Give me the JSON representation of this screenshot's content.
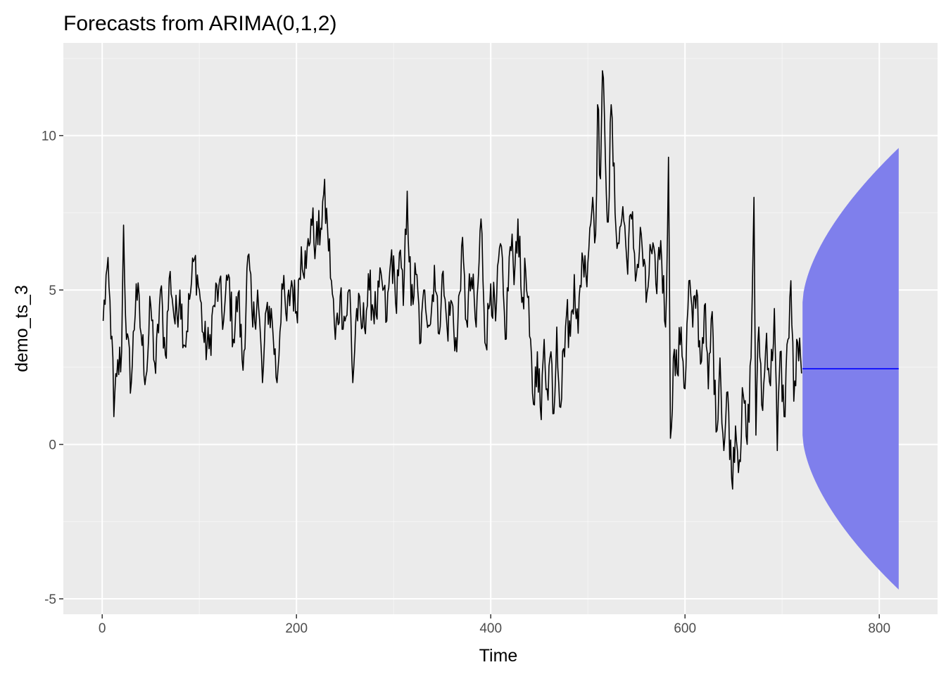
{
  "chart_data": {
    "type": "line",
    "title": "Forecasts from ARIMA(0,1,2)",
    "xlabel": "Time",
    "ylabel": "demo_ts_3",
    "xlim": [
      -40,
      860
    ],
    "ylim": [
      -5.5,
      13.0
    ],
    "x_ticks": [
      0,
      200,
      400,
      600,
      800
    ],
    "x_tick_labels": [
      "0",
      "200",
      "400",
      "600",
      "800"
    ],
    "x_minor_ticks": [
      100,
      300,
      500,
      700
    ],
    "y_ticks": [
      -5,
      0,
      5,
      10
    ],
    "y_tick_labels": [
      "-5",
      "0",
      "5",
      "10"
    ],
    "y_minor_ticks": [
      -2.5,
      2.5,
      7.5,
      12.5
    ],
    "grid": true,
    "series": [
      {
        "name": "demo_ts_3",
        "color": "#000000",
        "x_start": 1,
        "x_step": 1,
        "anchors": [
          [
            1,
            4.0
          ],
          [
            5,
            5.7
          ],
          [
            10,
            3.5
          ],
          [
            12,
            0.9
          ],
          [
            15,
            2.2
          ],
          [
            20,
            3.0
          ],
          [
            22,
            7.1
          ],
          [
            25,
            3.4
          ],
          [
            30,
            2.0
          ],
          [
            35,
            5.2
          ],
          [
            40,
            3.6
          ],
          [
            45,
            2.2
          ],
          [
            50,
            4.5
          ],
          [
            55,
            2.3
          ],
          [
            60,
            5.0
          ],
          [
            65,
            2.9
          ],
          [
            70,
            5.6
          ],
          [
            75,
            3.9
          ],
          [
            80,
            5.0
          ],
          [
            85,
            3.2
          ],
          [
            90,
            4.7
          ],
          [
            95,
            6.0
          ],
          [
            100,
            5.0
          ],
          [
            105,
            3.3
          ],
          [
            110,
            3.1
          ],
          [
            115,
            4.5
          ],
          [
            120,
            5.1
          ],
          [
            125,
            4.0
          ],
          [
            130,
            5.5
          ],
          [
            135,
            3.4
          ],
          [
            140,
            4.9
          ],
          [
            145,
            2.4
          ],
          [
            150,
            6.1
          ],
          [
            155,
            3.8
          ],
          [
            160,
            5.0
          ],
          [
            165,
            2.0
          ],
          [
            170,
            4.6
          ],
          [
            175,
            4.0
          ],
          [
            180,
            2.0
          ],
          [
            185,
            5.2
          ],
          [
            190,
            4.0
          ],
          [
            195,
            5.3
          ],
          [
            200,
            4.3
          ],
          [
            205,
            6.4
          ],
          [
            210,
            5.7
          ],
          [
            215,
            7.3
          ],
          [
            220,
            6.5
          ],
          [
            225,
            7.0
          ],
          [
            228,
            8.1
          ],
          [
            232,
            7.0
          ],
          [
            236,
            5.3
          ],
          [
            240,
            3.4
          ],
          [
            245,
            4.8
          ],
          [
            250,
            4.0
          ],
          [
            255,
            5.0
          ],
          [
            258,
            2.0
          ],
          [
            262,
            4.4
          ],
          [
            268,
            3.8
          ],
          [
            275,
            5.0
          ],
          [
            282,
            4.2
          ],
          [
            288,
            5.3
          ],
          [
            293,
            4.0
          ],
          [
            298,
            6.3
          ],
          [
            302,
            4.6
          ],
          [
            306,
            6.2
          ],
          [
            310,
            4.5
          ],
          [
            314,
            8.2
          ],
          [
            318,
            4.5
          ],
          [
            323,
            5.5
          ],
          [
            328,
            3.3
          ],
          [
            332,
            5.0
          ],
          [
            338,
            3.9
          ],
          [
            342,
            5.8
          ],
          [
            346,
            3.6
          ],
          [
            350,
            5.5
          ],
          [
            355,
            3.8
          ],
          [
            360,
            4.6
          ],
          [
            365,
            3.0
          ],
          [
            370,
            6.4
          ],
          [
            375,
            4.0
          ],
          [
            380,
            5.4
          ],
          [
            385,
            3.8
          ],
          [
            390,
            7.3
          ],
          [
            395,
            3.2
          ],
          [
            400,
            5.2
          ],
          [
            405,
            4.0
          ],
          [
            410,
            6.5
          ],
          [
            415,
            3.4
          ],
          [
            420,
            6.4
          ],
          [
            425,
            5.8
          ],
          [
            428,
            7.3
          ],
          [
            432,
            4.6
          ],
          [
            436,
            5.6
          ],
          [
            440,
            3.5
          ],
          [
            444,
            1.3
          ],
          [
            448,
            3.0
          ],
          [
            452,
            0.8
          ],
          [
            455,
            3.4
          ],
          [
            458,
            1.8
          ],
          [
            462,
            3.0
          ],
          [
            465,
            1.0
          ],
          [
            468,
            3.8
          ],
          [
            472,
            1.2
          ],
          [
            475,
            3.1
          ],
          [
            478,
            4.2
          ],
          [
            482,
            3.5
          ],
          [
            486,
            5.5
          ],
          [
            490,
            3.6
          ],
          [
            494,
            6.2
          ],
          [
            498,
            5.5
          ],
          [
            502,
            7.0
          ],
          [
            505,
            8.0
          ],
          [
            508,
            6.8
          ],
          [
            510,
            11.0
          ],
          [
            513,
            8.6
          ],
          [
            515,
            12.1
          ],
          [
            518,
            9.3
          ],
          [
            521,
            7.2
          ],
          [
            524,
            11.0
          ],
          [
            528,
            7.5
          ],
          [
            532,
            6.5
          ],
          [
            536,
            7.7
          ],
          [
            540,
            6.0
          ],
          [
            545,
            7.3
          ],
          [
            550,
            5.5
          ],
          [
            555,
            6.8
          ],
          [
            560,
            4.6
          ],
          [
            565,
            6.3
          ],
          [
            570,
            5.2
          ],
          [
            575,
            6.6
          ],
          [
            580,
            3.8
          ],
          [
            583,
            9.3
          ],
          [
            585,
            0.2
          ],
          [
            588,
            2.8
          ],
          [
            592,
            2.3
          ],
          [
            596,
            3.8
          ],
          [
            600,
            1.8
          ],
          [
            604,
            5.3
          ],
          [
            608,
            3.8
          ],
          [
            612,
            5.0
          ],
          [
            616,
            2.6
          ],
          [
            620,
            4.5
          ],
          [
            624,
            1.8
          ],
          [
            628,
            4.3
          ],
          [
            632,
            0.4
          ],
          [
            636,
            2.8
          ],
          [
            640,
            -0.2
          ],
          [
            644,
            1.7
          ],
          [
            648,
            -1.1
          ],
          [
            652,
            0.6
          ],
          [
            656,
            -0.5
          ],
          [
            660,
            1.6
          ],
          [
            664,
            0.0
          ],
          [
            668,
            2.8
          ],
          [
            671,
            8.0
          ],
          [
            673,
            0.3
          ],
          [
            676,
            3.8
          ],
          [
            680,
            1.1
          ],
          [
            684,
            3.6
          ],
          [
            688,
            1.9
          ],
          [
            692,
            4.4
          ],
          [
            695,
            -0.2
          ],
          [
            698,
            3.0
          ],
          [
            702,
            0.9
          ],
          [
            706,
            3.4
          ],
          [
            709,
            5.3
          ],
          [
            712,
            1.4
          ],
          [
            716,
            3.3
          ],
          [
            720,
            2.3
          ]
        ]
      },
      {
        "name": "Point forecast",
        "color": "#0000ff",
        "x": [
          721,
          820
        ],
        "y": [
          2.45,
          2.45
        ]
      }
    ],
    "forecast_interval": {
      "name": "95% prediction interval",
      "color": "#7f7fec",
      "x_start": 721,
      "x_end": 820,
      "center": 2.45,
      "initial_half_width": 2.15,
      "final_half_width": 7.15
    }
  }
}
